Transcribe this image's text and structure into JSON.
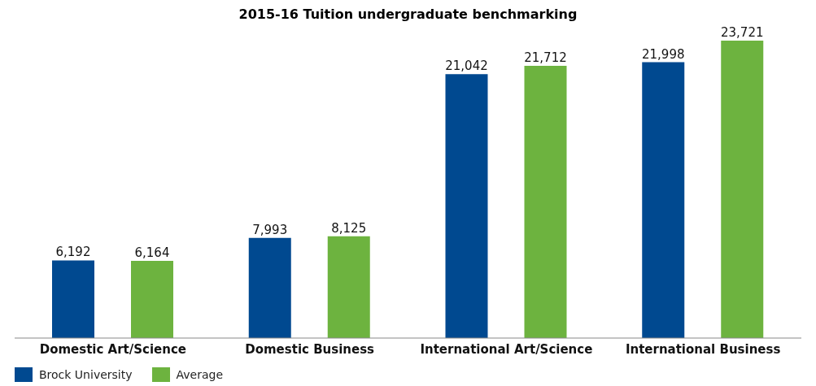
{
  "chart_data": {
    "type": "bar",
    "title": "2015-16 Tuition undergraduate benchmarking",
    "categories": [
      "Domestic Art/Science",
      "Domestic Business",
      "International Art/Science",
      "International Business"
    ],
    "series": [
      {
        "name": "Brock University",
        "color": "#004990",
        "values": [
          6192,
          7993,
          21042,
          21998
        ],
        "value_labels": [
          "6,192",
          "7,993",
          "21,042",
          "21,998"
        ]
      },
      {
        "name": "Average",
        "color": "#6db33f",
        "values": [
          6164,
          8125,
          21712,
          23721
        ],
        "value_labels": [
          "6,164",
          "8,125",
          "21,712",
          "23,721"
        ]
      }
    ],
    "legend": "bottom left",
    "grid": false
  }
}
